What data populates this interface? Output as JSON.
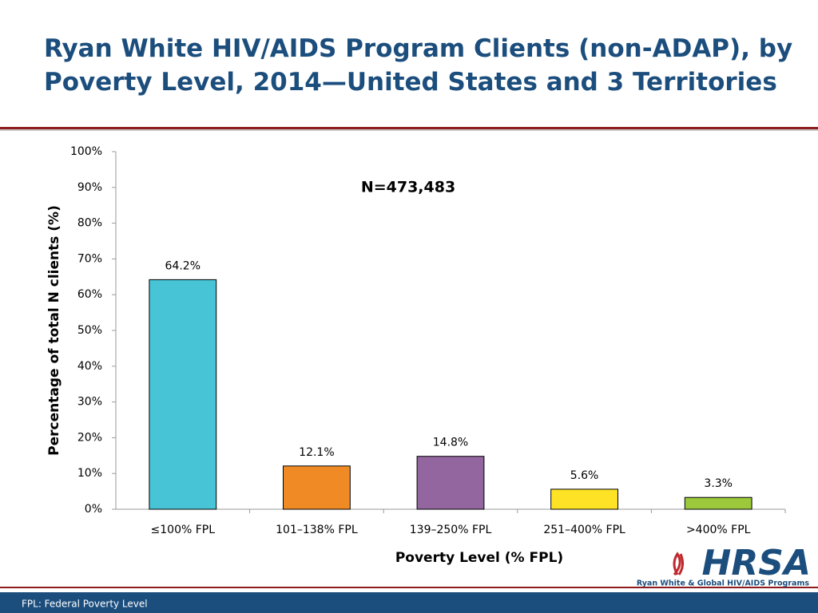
{
  "chart_data": {
    "type": "bar",
    "title": "Ryan White HIV/AIDS Program Clients (non-ADAP), by Poverty Level, 2014—United States and 3 Territories",
    "annotation": "N=473,483",
    "y_label": "Percentage of total N clients (%)",
    "x_label": "Poverty Level (% FPL)",
    "categories": [
      "≤100% FPL",
      "101–138% FPL",
      "139–250% FPL",
      "251–400% FPL",
      ">400% FPL"
    ],
    "values": [
      64.2,
      12.1,
      14.8,
      5.6,
      3.3
    ],
    "value_labels": [
      "64.2%",
      "12.1%",
      "14.8%",
      "5.6%",
      "3.3%"
    ],
    "colors": [
      "#47c4d6",
      "#f08a24",
      "#94669f",
      "#fde225",
      "#9cc93c"
    ],
    "ylim": [
      0,
      100
    ],
    "yticks": [
      {
        "value": 0,
        "label": "0%"
      },
      {
        "value": 10,
        "label": "10%"
      },
      {
        "value": 20,
        "label": "20%"
      },
      {
        "value": 30,
        "label": "30%"
      },
      {
        "value": 40,
        "label": "40%"
      },
      {
        "value": 50,
        "label": "50%"
      },
      {
        "value": 60,
        "label": "60%"
      },
      {
        "value": 70,
        "label": "70%"
      },
      {
        "value": 80,
        "label": "80%"
      },
      {
        "value": 90,
        "label": "90%"
      },
      {
        "value": 100,
        "label": "100%"
      }
    ],
    "grid": false
  },
  "footer": "FPL: Federal Poverty Level",
  "logo": {
    "name": "HRSA",
    "subtitle": "Ryan White & Global HIV/AIDS Programs"
  }
}
